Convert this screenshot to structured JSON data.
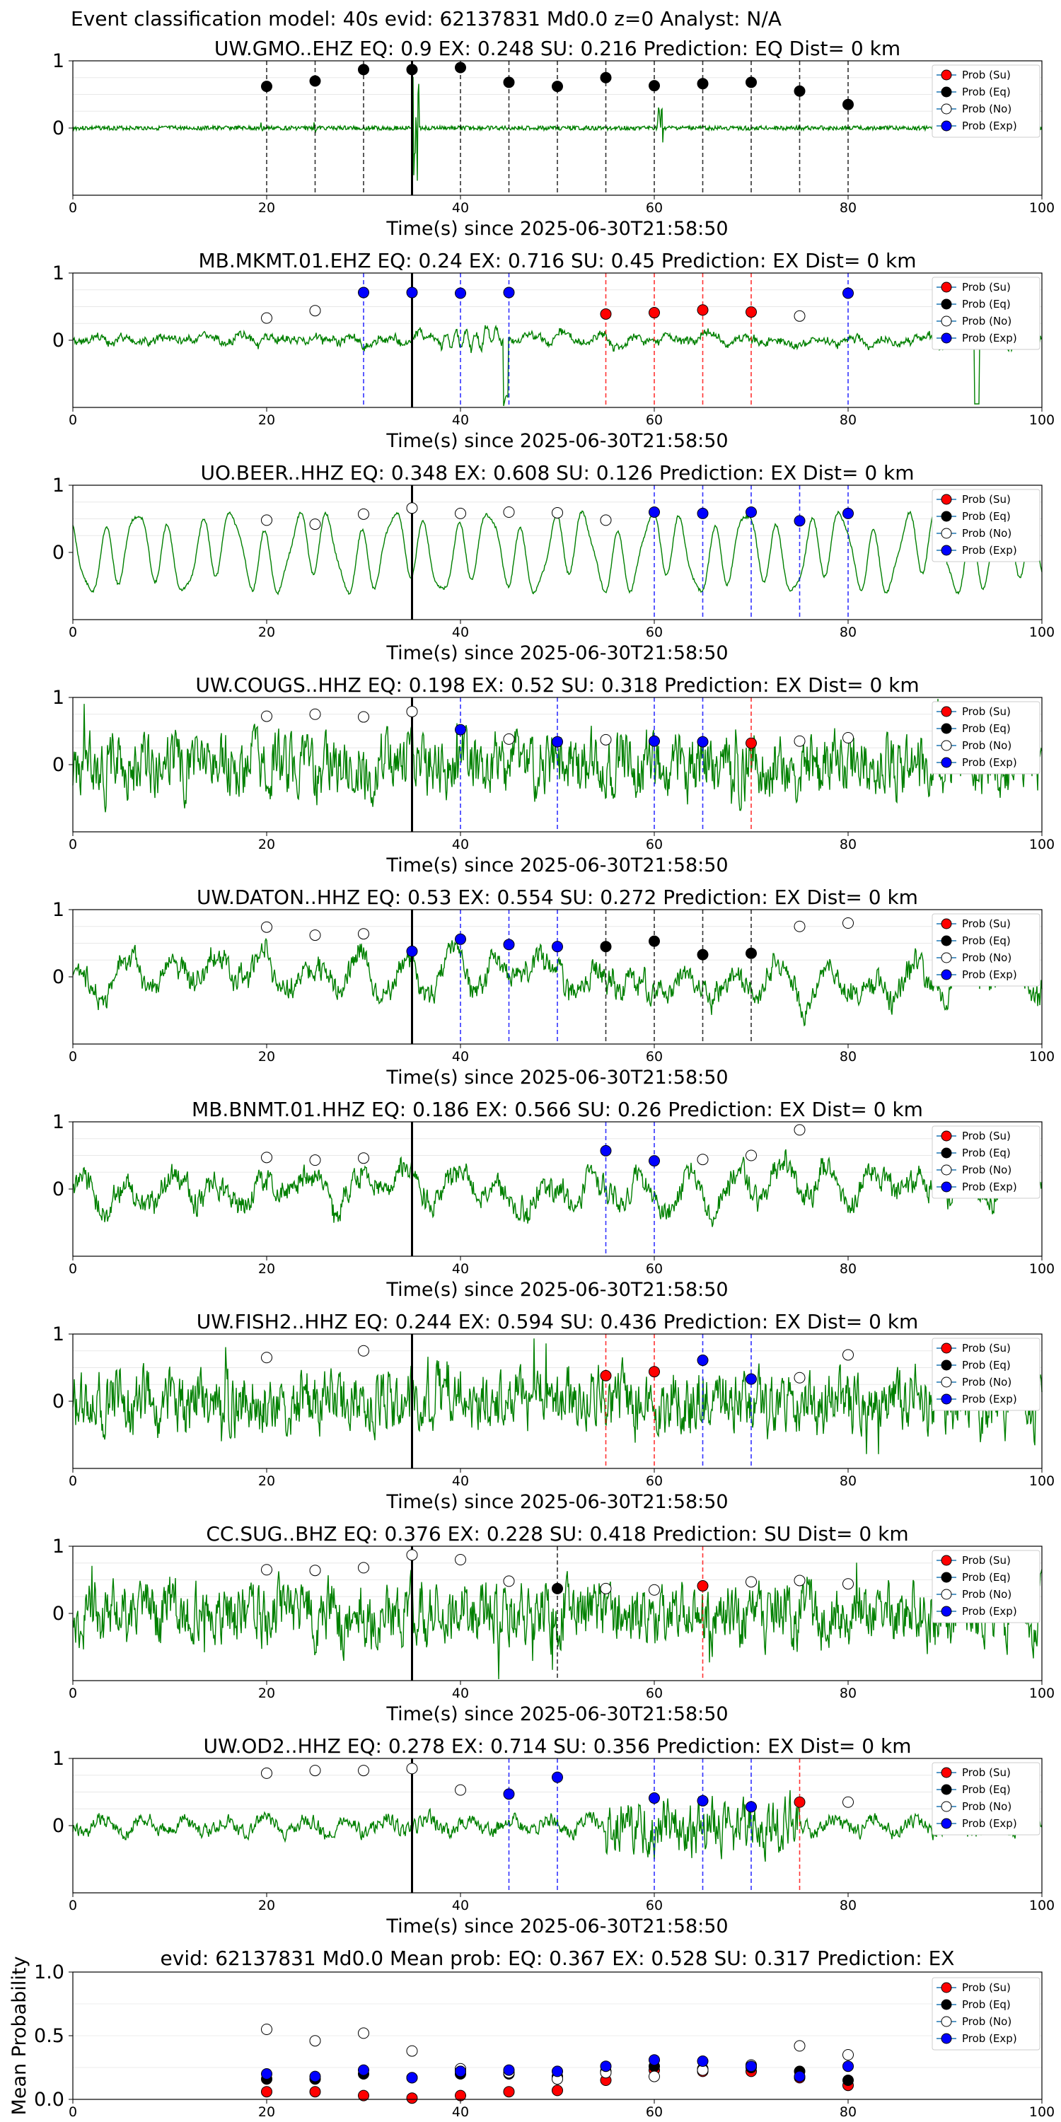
{
  "suptitle": "Event classification model: 40s evid: 62137831 Md0.0 z=0 Analyst: N/A",
  "legend": [
    {
      "label": "Prob (Su)",
      "color": "#ff0000"
    },
    {
      "label": "Prob (Eq)",
      "color": "#000000"
    },
    {
      "label": "Prob (No)",
      "color": "#ffffff"
    },
    {
      "label": "Prob (Exp)",
      "color": "#0000ff"
    }
  ],
  "colors": {
    "waveform": "#008000",
    "origin_line": "#000000",
    "su": "#ff0000",
    "eq": "#000000",
    "no": "#ffffff",
    "exp": "#0000ff",
    "vline_su": "#ff0000",
    "vline_eq": "#000000",
    "vline_exp": "#0000ff"
  },
  "xlabel": "Time(s) since 2025-06-30T21:58:50",
  "xticks": [
    0,
    20,
    40,
    60,
    80,
    100
  ],
  "yticks": [
    0,
    1
  ],
  "chart_data": [
    {
      "type": "scatter",
      "title": "UW.GMO..EHZ   EQ: 0.9  EX: 0.248  SU: 0.216   Prediction: EQ    Dist= 0 km",
      "xlabel": "Time(s) since 2025-06-30T21:58:50",
      "xlim": [
        0,
        100
      ],
      "ylim": [
        -1,
        1
      ],
      "origin_time": 35,
      "waveform_style": "quiet",
      "waveform_seed": 3,
      "points": [
        {
          "x": 20,
          "y": 0.62,
          "class": "eq"
        },
        {
          "x": 25,
          "y": 0.7,
          "class": "eq"
        },
        {
          "x": 30,
          "y": 0.87,
          "class": "eq"
        },
        {
          "x": 35,
          "y": 0.87,
          "class": "eq"
        },
        {
          "x": 40,
          "y": 0.9,
          "class": "eq"
        },
        {
          "x": 45,
          "y": 0.68,
          "class": "eq"
        },
        {
          "x": 50,
          "y": 0.62,
          "class": "eq"
        },
        {
          "x": 55,
          "y": 0.75,
          "class": "eq"
        },
        {
          "x": 60,
          "y": 0.63,
          "class": "eq"
        },
        {
          "x": 65,
          "y": 0.66,
          "class": "eq"
        },
        {
          "x": 70,
          "y": 0.68,
          "class": "eq"
        },
        {
          "x": 75,
          "y": 0.55,
          "class": "eq"
        },
        {
          "x": 80,
          "y": 0.35,
          "class": "eq"
        }
      ]
    },
    {
      "type": "scatter",
      "title": "MB.MKMT.01.EHZ   EQ: 0.24  EX: 0.716  SU: 0.45   Prediction: EX    Dist= 0 km",
      "xlabel": "Time(s) since 2025-06-30T21:58:50",
      "xlim": [
        0,
        100
      ],
      "ylim": [
        -1,
        1
      ],
      "origin_time": 35,
      "waveform_style": "low",
      "waveform_seed": 7,
      "points": [
        {
          "x": 20,
          "y": 0.33,
          "class": "no"
        },
        {
          "x": 25,
          "y": 0.44,
          "class": "no"
        },
        {
          "x": 30,
          "y": 0.71,
          "class": "exp"
        },
        {
          "x": 35,
          "y": 0.71,
          "class": "exp"
        },
        {
          "x": 40,
          "y": 0.7,
          "class": "exp"
        },
        {
          "x": 45,
          "y": 0.71,
          "class": "exp"
        },
        {
          "x": 55,
          "y": 0.39,
          "class": "su"
        },
        {
          "x": 60,
          "y": 0.41,
          "class": "su"
        },
        {
          "x": 65,
          "y": 0.45,
          "class": "su"
        },
        {
          "x": 70,
          "y": 0.42,
          "class": "su"
        },
        {
          "x": 75,
          "y": 0.36,
          "class": "no"
        },
        {
          "x": 80,
          "y": 0.7,
          "class": "exp"
        }
      ]
    },
    {
      "type": "scatter",
      "title": "UO.BEER..HHZ   EQ: 0.348  EX: 0.608  SU: 0.126   Prediction: EX    Dist= 0 km",
      "xlabel": "Time(s) since 2025-06-30T21:58:50",
      "xlim": [
        0,
        100
      ],
      "ylim": [
        -1,
        1
      ],
      "origin_time": 35,
      "waveform_style": "smooth",
      "waveform_seed": 11,
      "points": [
        {
          "x": 20,
          "y": 0.48,
          "class": "no"
        },
        {
          "x": 25,
          "y": 0.42,
          "class": "no"
        },
        {
          "x": 30,
          "y": 0.57,
          "class": "no"
        },
        {
          "x": 35,
          "y": 0.66,
          "class": "no"
        },
        {
          "x": 40,
          "y": 0.58,
          "class": "no"
        },
        {
          "x": 45,
          "y": 0.6,
          "class": "no"
        },
        {
          "x": 50,
          "y": 0.59,
          "class": "no"
        },
        {
          "x": 55,
          "y": 0.48,
          "class": "no"
        },
        {
          "x": 60,
          "y": 0.6,
          "class": "exp"
        },
        {
          "x": 65,
          "y": 0.58,
          "class": "exp"
        },
        {
          "x": 70,
          "y": 0.6,
          "class": "exp"
        },
        {
          "x": 75,
          "y": 0.47,
          "class": "exp"
        },
        {
          "x": 80,
          "y": 0.58,
          "class": "exp"
        }
      ]
    },
    {
      "type": "scatter",
      "title": "UW.COUGS..HHZ   EQ: 0.198  EX: 0.52  SU: 0.318   Prediction: EX    Dist= 0 km",
      "xlabel": "Time(s) since 2025-06-30T21:58:50",
      "xlim": [
        0,
        100
      ],
      "ylim": [
        -1,
        1
      ],
      "origin_time": 35,
      "waveform_style": "noisy",
      "waveform_seed": 17,
      "points": [
        {
          "x": 20,
          "y": 0.72,
          "class": "no"
        },
        {
          "x": 25,
          "y": 0.75,
          "class": "no"
        },
        {
          "x": 30,
          "y": 0.71,
          "class": "no"
        },
        {
          "x": 35,
          "y": 0.79,
          "class": "no"
        },
        {
          "x": 40,
          "y": 0.52,
          "class": "exp"
        },
        {
          "x": 45,
          "y": 0.38,
          "class": "no"
        },
        {
          "x": 50,
          "y": 0.34,
          "class": "exp"
        },
        {
          "x": 55,
          "y": 0.37,
          "class": "no"
        },
        {
          "x": 60,
          "y": 0.35,
          "class": "exp"
        },
        {
          "x": 65,
          "y": 0.34,
          "class": "exp"
        },
        {
          "x": 70,
          "y": 0.32,
          "class": "su"
        },
        {
          "x": 75,
          "y": 0.35,
          "class": "no"
        },
        {
          "x": 80,
          "y": 0.4,
          "class": "no"
        }
      ]
    },
    {
      "type": "scatter",
      "title": "UW.DATON..HHZ   EQ: 0.53  EX: 0.554  SU: 0.272   Prediction: EX    Dist= 0 km",
      "xlabel": "Time(s) since 2025-06-30T21:58:50",
      "xlim": [
        0,
        100
      ],
      "ylim": [
        -1,
        1
      ],
      "origin_time": 35,
      "waveform_style": "mixed",
      "waveform_seed": 23,
      "points": [
        {
          "x": 20,
          "y": 0.74,
          "class": "no"
        },
        {
          "x": 25,
          "y": 0.62,
          "class": "no"
        },
        {
          "x": 30,
          "y": 0.64,
          "class": "no"
        },
        {
          "x": 35,
          "y": 0.38,
          "class": "exp"
        },
        {
          "x": 40,
          "y": 0.56,
          "class": "exp"
        },
        {
          "x": 45,
          "y": 0.48,
          "class": "exp"
        },
        {
          "x": 50,
          "y": 0.45,
          "class": "exp"
        },
        {
          "x": 55,
          "y": 0.45,
          "class": "eq"
        },
        {
          "x": 60,
          "y": 0.53,
          "class": "eq"
        },
        {
          "x": 65,
          "y": 0.33,
          "class": "eq"
        },
        {
          "x": 70,
          "y": 0.35,
          "class": "eq"
        },
        {
          "x": 75,
          "y": 0.75,
          "class": "no"
        },
        {
          "x": 80,
          "y": 0.8,
          "class": "no"
        }
      ]
    },
    {
      "type": "scatter",
      "title": "MB.BNMT.01.HHZ   EQ: 0.186  EX: 0.566  SU: 0.26   Prediction: EX    Dist= 0 km",
      "xlabel": "Time(s) since 2025-06-30T21:58:50",
      "xlim": [
        0,
        100
      ],
      "ylim": [
        -1,
        1
      ],
      "origin_time": 35,
      "waveform_style": "mixed",
      "waveform_seed": 29,
      "points": [
        {
          "x": 20,
          "y": 0.47,
          "class": "no"
        },
        {
          "x": 25,
          "y": 0.43,
          "class": "no"
        },
        {
          "x": 30,
          "y": 0.46,
          "class": "no"
        },
        {
          "x": 55,
          "y": 0.57,
          "class": "exp"
        },
        {
          "x": 60,
          "y": 0.42,
          "class": "exp"
        },
        {
          "x": 65,
          "y": 0.44,
          "class": "no"
        },
        {
          "x": 70,
          "y": 0.5,
          "class": "no"
        },
        {
          "x": 75,
          "y": 0.88,
          "class": "no"
        }
      ]
    },
    {
      "type": "scatter",
      "title": "UW.FISH2..HHZ   EQ: 0.244  EX: 0.594  SU: 0.436   Prediction: EX    Dist= 0 km",
      "xlabel": "Time(s) since 2025-06-30T21:58:50",
      "xlim": [
        0,
        100
      ],
      "ylim": [
        -1,
        1
      ],
      "origin_time": 35,
      "waveform_style": "noisy",
      "waveform_seed": 31,
      "points": [
        {
          "x": 20,
          "y": 0.65,
          "class": "no"
        },
        {
          "x": 30,
          "y": 0.75,
          "class": "no"
        },
        {
          "x": 55,
          "y": 0.38,
          "class": "su"
        },
        {
          "x": 60,
          "y": 0.44,
          "class": "su"
        },
        {
          "x": 65,
          "y": 0.61,
          "class": "exp"
        },
        {
          "x": 70,
          "y": 0.33,
          "class": "exp"
        },
        {
          "x": 75,
          "y": 0.35,
          "class": "no"
        },
        {
          "x": 80,
          "y": 0.69,
          "class": "no"
        }
      ]
    },
    {
      "type": "scatter",
      "title": "CC.SUG..BHZ   EQ: 0.376  EX: 0.228  SU: 0.418   Prediction: SU    Dist= 0 km",
      "xlabel": "Time(s) since 2025-06-30T21:58:50",
      "xlim": [
        0,
        100
      ],
      "ylim": [
        -1,
        1
      ],
      "origin_time": 35,
      "waveform_style": "noisy",
      "waveform_seed": 37,
      "points": [
        {
          "x": 20,
          "y": 0.65,
          "class": "no"
        },
        {
          "x": 25,
          "y": 0.64,
          "class": "no"
        },
        {
          "x": 30,
          "y": 0.68,
          "class": "no"
        },
        {
          "x": 35,
          "y": 0.87,
          "class": "no"
        },
        {
          "x": 40,
          "y": 0.8,
          "class": "no"
        },
        {
          "x": 45,
          "y": 0.48,
          "class": "no"
        },
        {
          "x": 50,
          "y": 0.37,
          "class": "eq"
        },
        {
          "x": 55,
          "y": 0.37,
          "class": "no"
        },
        {
          "x": 60,
          "y": 0.35,
          "class": "no"
        },
        {
          "x": 65,
          "y": 0.41,
          "class": "su"
        },
        {
          "x": 70,
          "y": 0.47,
          "class": "no"
        },
        {
          "x": 75,
          "y": 0.49,
          "class": "no"
        },
        {
          "x": 80,
          "y": 0.44,
          "class": "no"
        }
      ]
    },
    {
      "type": "scatter",
      "title": "UW.OD2..HHZ   EQ: 0.278  EX: 0.714  SU: 0.356   Prediction: EX    Dist= 0 km",
      "xlabel": "Time(s) since 2025-06-30T21:58:50",
      "xlim": [
        0,
        100
      ],
      "ylim": [
        -1,
        1
      ],
      "origin_time": 35,
      "waveform_style": "burst",
      "waveform_seed": 41,
      "points": [
        {
          "x": 20,
          "y": 0.78,
          "class": "no"
        },
        {
          "x": 25,
          "y": 0.82,
          "class": "no"
        },
        {
          "x": 30,
          "y": 0.82,
          "class": "no"
        },
        {
          "x": 35,
          "y": 0.85,
          "class": "no"
        },
        {
          "x": 40,
          "y": 0.53,
          "class": "no"
        },
        {
          "x": 45,
          "y": 0.47,
          "class": "exp"
        },
        {
          "x": 50,
          "y": 0.72,
          "class": "exp"
        },
        {
          "x": 60,
          "y": 0.41,
          "class": "exp"
        },
        {
          "x": 65,
          "y": 0.37,
          "class": "exp"
        },
        {
          "x": 70,
          "y": 0.28,
          "class": "exp"
        },
        {
          "x": 75,
          "y": 0.35,
          "class": "su"
        },
        {
          "x": 80,
          "y": 0.35,
          "class": "no"
        }
      ]
    },
    {
      "type": "scatter",
      "title": "evid: 62137831  Md0.0   Mean prob:   EQ: 0.367  EX: 0.528  SU: 0.317   Prediction: EX",
      "ylabel": "Mean Probability",
      "xlim": [
        0,
        100
      ],
      "ylim": [
        0,
        1
      ],
      "yticks": [
        0.0,
        0.5,
        1.0
      ],
      "series": [
        {
          "name": "Prob (Su)",
          "class": "su",
          "x": [
            20,
            25,
            30,
            35,
            40,
            45,
            50,
            55,
            60,
            65,
            70,
            75,
            80
          ],
          "y": [
            0.06,
            0.06,
            0.03,
            0.01,
            0.03,
            0.06,
            0.07,
            0.15,
            0.23,
            0.22,
            0.22,
            0.17,
            0.11
          ]
        },
        {
          "name": "Prob (Eq)",
          "class": "eq",
          "x": [
            20,
            25,
            30,
            35,
            40,
            45,
            50,
            55,
            60,
            65,
            70,
            75,
            80
          ],
          "y": [
            0.16,
            0.16,
            0.2,
            0.17,
            0.2,
            0.2,
            0.18,
            0.22,
            0.26,
            0.24,
            0.25,
            0.22,
            0.15
          ]
        },
        {
          "name": "Prob (No)",
          "class": "no",
          "x": [
            20,
            25,
            30,
            35,
            40,
            45,
            50,
            55,
            60,
            65,
            70,
            75,
            80
          ],
          "y": [
            0.55,
            0.46,
            0.52,
            0.38,
            0.24,
            0.21,
            0.16,
            0.21,
            0.18,
            0.23,
            0.27,
            0.42,
            0.35
          ]
        },
        {
          "name": "Prob (Exp)",
          "class": "exp",
          "x": [
            20,
            25,
            30,
            35,
            40,
            45,
            50,
            55,
            60,
            65,
            70,
            75,
            80
          ],
          "y": [
            0.2,
            0.18,
            0.23,
            0.17,
            0.22,
            0.23,
            0.22,
            0.26,
            0.31,
            0.3,
            0.26,
            0.18,
            0.26
          ]
        }
      ]
    }
  ]
}
